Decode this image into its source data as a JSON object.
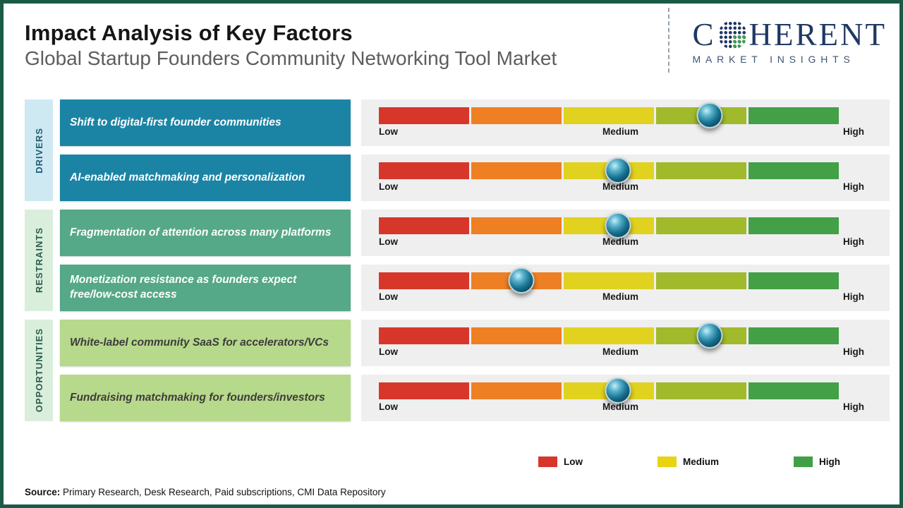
{
  "header": {
    "title": "Impact Analysis of Key Factors",
    "subtitle": "Global Startup Founders Community Networking Tool Market"
  },
  "logo": {
    "brand_part1": "C",
    "brand_part2": "HERENT",
    "tagline": "MARKET INSIGHTS",
    "navy": "#1f3864",
    "green": "#3fa14d"
  },
  "groups": [
    {
      "label": "DRIVERS",
      "strip_color": "#cfe9f3",
      "strip_text_color": "#1d5e75",
      "box_color": "#1b84a5",
      "box_text_color": "#ffffff"
    },
    {
      "label": "RESTRAINTS",
      "strip_color": "#d9efdc",
      "strip_text_color": "#2c5c4a",
      "box_color": "#55a888",
      "box_text_color": "#ffffff"
    },
    {
      "label": "OPPORTUNITIES",
      "strip_color": "#d9efdc",
      "strip_text_color": "#2c5c4a",
      "box_color": "#b7d98b",
      "box_text_color": "#3c3c3c"
    }
  ],
  "rows": [
    {
      "group": 0,
      "factor": "Shift to digital-first founder communities",
      "impact_pos": 0.72
    },
    {
      "group": 0,
      "factor": "AI-enabled matchmaking and personalization",
      "impact_pos": 0.52
    },
    {
      "group": 1,
      "factor": "Fragmentation of attention across many platforms",
      "impact_pos": 0.52
    },
    {
      "group": 1,
      "factor": "Monetization resistance as founders expect free/low-cost access",
      "impact_pos": 0.31
    },
    {
      "group": 2,
      "factor": "White-label community SaaS for accelerators/VCs",
      "impact_pos": 0.72
    },
    {
      "group": 2,
      "factor": "Fundraising matchmaking for founders/investors",
      "impact_pos": 0.52
    }
  ],
  "scale": {
    "low": "Low",
    "medium": "Medium",
    "high": "High",
    "segment_colors": [
      "#d7372b",
      "#ee8023",
      "#e0d21f",
      "#a0ba2c",
      "#43a047"
    ],
    "marker_color": "#0d5a74"
  },
  "legend": [
    {
      "label": "Low",
      "color": "#d7372b"
    },
    {
      "label": "Medium",
      "color": "#e8d411"
    },
    {
      "label": "High",
      "color": "#3fa045"
    }
  ],
  "footer": {
    "source_label": "Source:",
    "source_text": " Primary Research, Desk Research, Paid subscriptions, CMI Data Repository"
  },
  "chart_data": {
    "type": "scatter",
    "title": "Impact Analysis of Key Factors",
    "subtitle": "Global Startup Founders Community Networking Tool Market",
    "x_scale": {
      "labels": [
        "Low",
        "Medium",
        "High"
      ],
      "range": [
        0,
        1
      ]
    },
    "legend": [
      "Low",
      "Medium",
      "High"
    ],
    "rows": [
      {
        "category": "Drivers",
        "factor": "Shift to digital-first founder communities",
        "impact": 0.72,
        "impact_label": "Medium-High"
      },
      {
        "category": "Drivers",
        "factor": "AI-enabled matchmaking and personalization",
        "impact": 0.52,
        "impact_label": "Medium"
      },
      {
        "category": "Restraints",
        "factor": "Fragmentation of attention across many platforms",
        "impact": 0.52,
        "impact_label": "Medium"
      },
      {
        "category": "Restraints",
        "factor": "Monetization resistance as founders expect free/low-cost access",
        "impact": 0.31,
        "impact_label": "Low-Medium"
      },
      {
        "category": "Opportunities",
        "factor": "White-label community SaaS for accelerators/VCs",
        "impact": 0.72,
        "impact_label": "Medium-High"
      },
      {
        "category": "Opportunities",
        "factor": "Fundraising matchmaking for founders/investors",
        "impact": 0.52,
        "impact_label": "Medium"
      }
    ]
  }
}
